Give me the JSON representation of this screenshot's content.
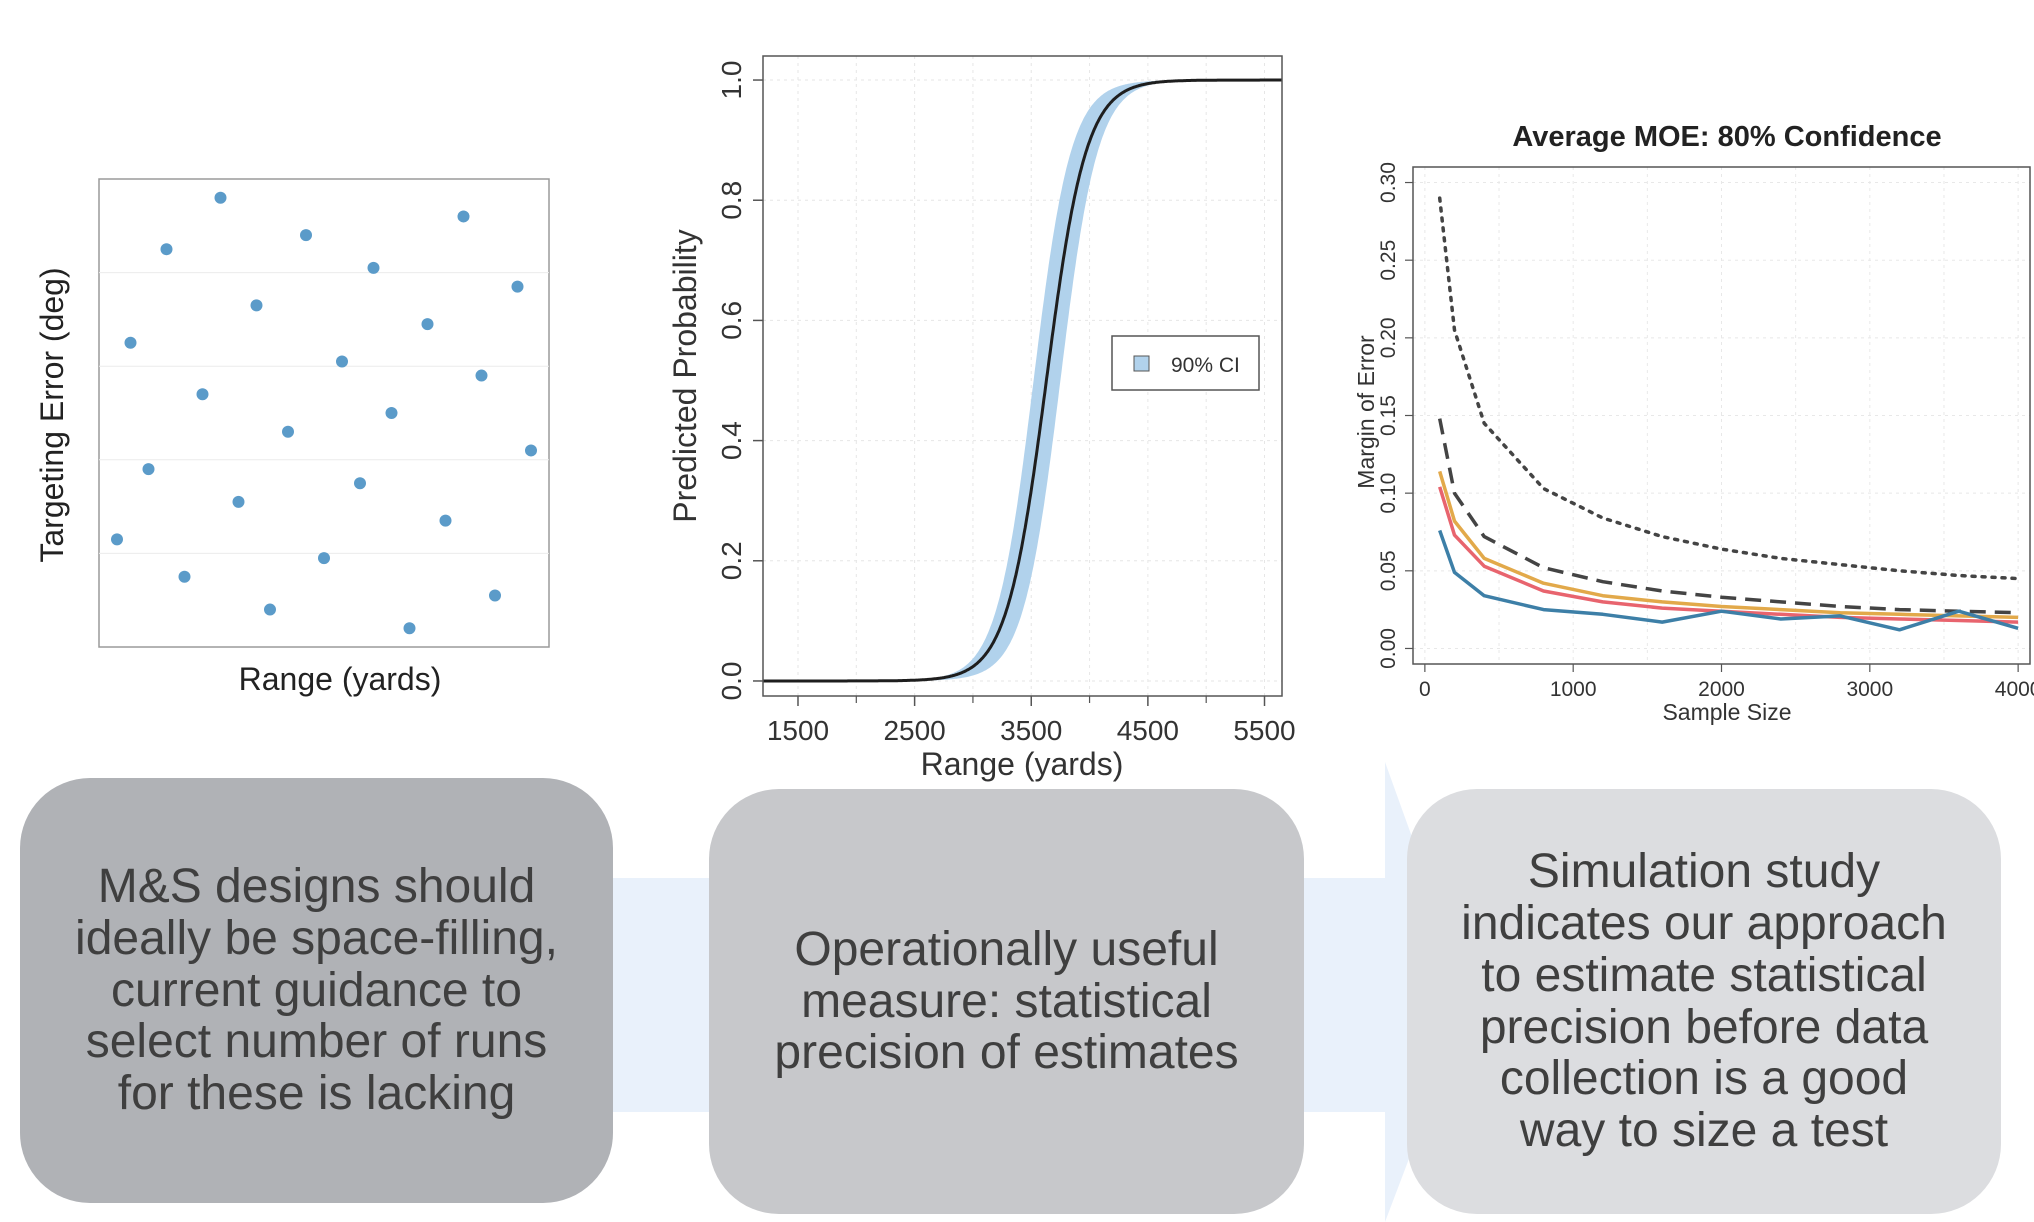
{
  "colors": {
    "point": "#5b9bc9",
    "ci_band": "#b1d2ec",
    "curve": "#1e1e1e",
    "moe_blue": "#3d7fa7",
    "moe_red": "#e8646e",
    "moe_orange": "#e2a94a",
    "dashed": "#444444",
    "arrow": "#e9f1fb"
  },
  "chart_data": [
    {
      "type": "scatter",
      "title": "",
      "xlabel": "Range (yards)",
      "ylabel": "Targeting Error (deg)",
      "x_ticks_shown": false,
      "y_ticks_shown": false,
      "xlim": [
        0,
        1
      ],
      "ylim": [
        0,
        1
      ],
      "grid": true,
      "points": [
        {
          "x": 0.27,
          "y": 0.96
        },
        {
          "x": 0.46,
          "y": 0.88
        },
        {
          "x": 0.81,
          "y": 0.92
        },
        {
          "x": 0.15,
          "y": 0.85
        },
        {
          "x": 0.61,
          "y": 0.81
        },
        {
          "x": 0.93,
          "y": 0.77
        },
        {
          "x": 0.35,
          "y": 0.73
        },
        {
          "x": 0.73,
          "y": 0.69
        },
        {
          "x": 0.07,
          "y": 0.65
        },
        {
          "x": 0.54,
          "y": 0.61
        },
        {
          "x": 0.85,
          "y": 0.58
        },
        {
          "x": 0.23,
          "y": 0.54
        },
        {
          "x": 0.65,
          "y": 0.5
        },
        {
          "x": 0.42,
          "y": 0.46
        },
        {
          "x": 0.96,
          "y": 0.42
        },
        {
          "x": 0.11,
          "y": 0.38
        },
        {
          "x": 0.58,
          "y": 0.35
        },
        {
          "x": 0.31,
          "y": 0.31
        },
        {
          "x": 0.77,
          "y": 0.27
        },
        {
          "x": 0.04,
          "y": 0.23
        },
        {
          "x": 0.5,
          "y": 0.19
        },
        {
          "x": 0.19,
          "y": 0.15
        },
        {
          "x": 0.88,
          "y": 0.11
        },
        {
          "x": 0.38,
          "y": 0.08
        },
        {
          "x": 0.69,
          "y": 0.04
        }
      ]
    },
    {
      "type": "line",
      "title": "",
      "xlabel": "Range (yards)",
      "ylabel": "Predicted Probability",
      "xlim": [
        1200,
        5650
      ],
      "ylim": [
        -0.025,
        1.04
      ],
      "x_ticks": [
        1500,
        2500,
        3500,
        4500,
        5500
      ],
      "y_ticks": [
        0.0,
        0.2,
        0.4,
        0.6,
        0.8,
        1.0
      ],
      "grid": true,
      "curve": {
        "model": "logistic",
        "midpoint": 3630,
        "scale": 170
      },
      "ci_band": {
        "label": "90% CI",
        "lower_midpoint": 3750,
        "upper_midpoint": 3520,
        "scale": 160
      },
      "legend": {
        "entries": [
          "90% CI"
        ],
        "position": "right"
      }
    },
    {
      "type": "line",
      "title": "Average MOE: 80% Confidence",
      "xlabel": "Sample Size",
      "ylabel": "Margin of Error",
      "xlim": [
        -80,
        4080
      ],
      "ylim": [
        -0.01,
        0.31
      ],
      "x_ticks": [
        0,
        1000,
        2000,
        3000,
        4000
      ],
      "y_ticks": [
        0.0,
        0.05,
        0.1,
        0.15,
        0.2,
        0.25,
        0.3
      ],
      "grid": true,
      "x": [
        100,
        200,
        400,
        800,
        1200,
        1600,
        2000,
        2400,
        2800,
        3200,
        3600,
        4000
      ],
      "series": [
        {
          "style": "dotted",
          "color": "#444444",
          "values": [
            0.29,
            0.205,
            0.145,
            0.103,
            0.084,
            0.072,
            0.064,
            0.058,
            0.054,
            0.05,
            0.047,
            0.045
          ]
        },
        {
          "style": "dashed",
          "color": "#444444",
          "values": [
            0.148,
            0.1,
            0.072,
            0.052,
            0.043,
            0.037,
            0.033,
            0.03,
            0.027,
            0.025,
            0.024,
            0.023
          ]
        },
        {
          "style": "solid",
          "color": "#e2a94a",
          "values": [
            0.114,
            0.082,
            0.058,
            0.042,
            0.034,
            0.03,
            0.027,
            0.025,
            0.023,
            0.022,
            0.021,
            0.02
          ]
        },
        {
          "style": "solid",
          "color": "#e8646e",
          "values": [
            0.104,
            0.073,
            0.053,
            0.037,
            0.03,
            0.026,
            0.024,
            0.022,
            0.02,
            0.019,
            0.018,
            0.017
          ]
        },
        {
          "style": "solid",
          "color": "#3d7fa7",
          "values": [
            0.076,
            0.049,
            0.034,
            0.025,
            0.022,
            0.017,
            0.024,
            0.019,
            0.021,
            0.012,
            0.024,
            0.013
          ]
        }
      ]
    }
  ],
  "process": {
    "box1": "M&S designs should\nideally be space-filling,\ncurrent guidance to\nselect number of runs\nfor these is lacking",
    "box2": "Operationally useful\nmeasure: statistical\nprecision of estimates",
    "box3": "Simulation study\nindicates our approach\nto estimate statistical\nprecision before data\ncollection is a good\nway to size a test"
  }
}
